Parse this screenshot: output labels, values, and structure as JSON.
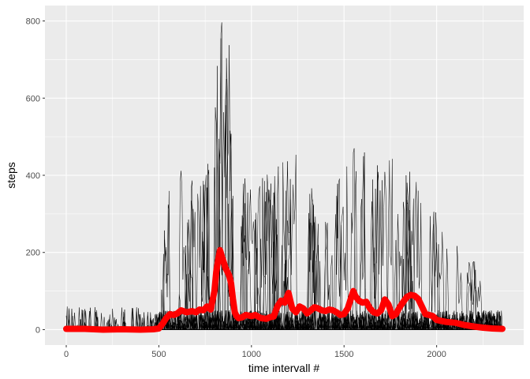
{
  "chart_data": {
    "type": "line",
    "xlabel": "time intervall #",
    "ylabel": "steps",
    "xlim": [
      -115,
      2470
    ],
    "ylim": [
      -40,
      840
    ],
    "x_ticks": [
      0,
      500,
      1000,
      1500,
      2000
    ],
    "y_ticks": [
      0,
      200,
      400,
      600,
      800
    ],
    "grid": true,
    "background": "#ebebeb",
    "grid_color": "#ffffff",
    "series": [
      {
        "color": "#ff0000",
        "style": "thick",
        "x": [
          0,
          100,
          200,
          300,
          400,
          470,
          500,
          520,
          540,
          560,
          580,
          600,
          620,
          650,
          680,
          700,
          720,
          740,
          760,
          780,
          800,
          810,
          820,
          830,
          840,
          850,
          860,
          870,
          880,
          890,
          900,
          910,
          920,
          930,
          950,
          970,
          1000,
          1020,
          1050,
          1080,
          1100,
          1120,
          1140,
          1160,
          1180,
          1200,
          1210,
          1220,
          1230,
          1240,
          1260,
          1280,
          1300,
          1320,
          1340,
          1360,
          1380,
          1400,
          1420,
          1440,
          1460,
          1480,
          1500,
          1520,
          1540,
          1550,
          1560,
          1580,
          1600,
          1620,
          1640,
          1660,
          1680,
          1700,
          1720,
          1740,
          1760,
          1780,
          1800,
          1820,
          1840,
          1860,
          1880,
          1900,
          1920,
          1940,
          1960,
          1980,
          2000,
          2050,
          2100,
          2150,
          2200,
          2250,
          2300,
          2355
        ],
        "values": [
          2,
          2,
          0,
          1,
          0,
          1,
          3,
          15,
          30,
          40,
          38,
          42,
          50,
          45,
          48,
          45,
          52,
          50,
          60,
          52,
          100,
          150,
          180,
          206,
          190,
          175,
          160,
          150,
          140,
          120,
          80,
          45,
          35,
          30,
          32,
          38,
          35,
          38,
          30,
          28,
          32,
          34,
          60,
          75,
          70,
          95,
          75,
          55,
          50,
          45,
          60,
          55,
          42,
          50,
          58,
          55,
          50,
          48,
          52,
          50,
          45,
          38,
          40,
          55,
          85,
          100,
          88,
          75,
          70,
          72,
          55,
          45,
          42,
          50,
          78,
          65,
          35,
          40,
          58,
          72,
          85,
          90,
          88,
          80,
          60,
          40,
          38,
          35,
          25,
          20,
          18,
          12,
          8,
          5,
          3,
          2
        ]
      }
    ]
  }
}
